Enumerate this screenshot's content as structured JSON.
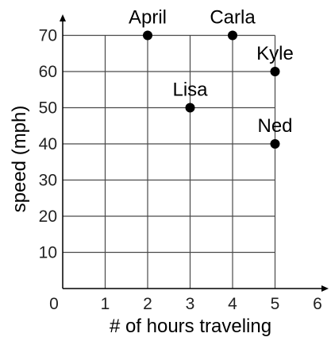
{
  "chart_data": {
    "type": "scatter",
    "xlabel": "# of hours traveling",
    "ylabel": "speed (mph)",
    "xlim": [
      0,
      6
    ],
    "ylim": [
      0,
      70
    ],
    "x_ticks": [
      "0",
      "1",
      "2",
      "3",
      "4",
      "5",
      "6"
    ],
    "y_ticks": [
      "10",
      "20",
      "30",
      "40",
      "50",
      "60",
      "70"
    ],
    "grid": true,
    "points": [
      {
        "label": "April",
        "x": 2,
        "y": 70
      },
      {
        "label": "Carla",
        "x": 4,
        "y": 70
      },
      {
        "label": "Kyle",
        "x": 5,
        "y": 60
      },
      {
        "label": "Lisa",
        "x": 3,
        "y": 50
      },
      {
        "label": "Ned",
        "x": 5,
        "y": 40
      }
    ]
  }
}
